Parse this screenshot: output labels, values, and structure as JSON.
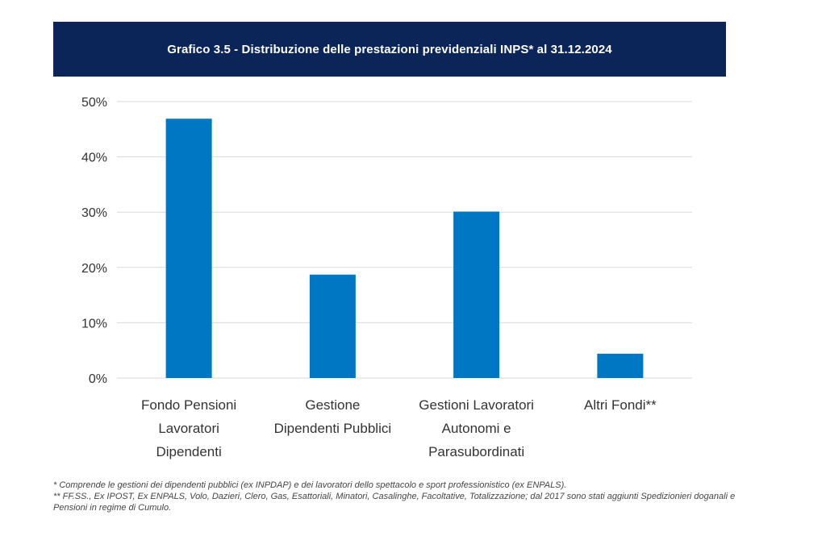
{
  "chart_data": {
    "type": "bar",
    "title": "Grafico 3.5 - Distribuzione delle prestazioni previdenziali INPS* al 31.12.2024",
    "categories": [
      [
        "Fondo Pensioni",
        "Lavoratori",
        "Dipendenti"
      ],
      [
        "Gestione",
        "Dipendenti Pubblici"
      ],
      [
        "Gestioni Lavoratori",
        "Autonomi e",
        "Parasubordinati"
      ],
      [
        "Altri Fondi**"
      ]
    ],
    "values": [
      46.9,
      18.7,
      30.1,
      4.4
    ],
    "ylim": [
      0,
      50
    ],
    "yticks": [
      0,
      10,
      20,
      30,
      40,
      50
    ],
    "ytick_labels": [
      "0%",
      "10%",
      "20%",
      "30%",
      "40%",
      "50%"
    ],
    "xlabel": "",
    "ylabel": "",
    "grid": true,
    "legend": "none",
    "bar_color": "#0077c2"
  },
  "colors": {
    "title_background": "#0b2559",
    "title_text": "#ffffff",
    "bars": "#0077c2",
    "gridlines": "#d9d9d9"
  },
  "notes": [
    "* Comprende le gestioni dei dipendenti pubblici (ex INPDAP) e dei lavoratori dello spettacolo e sport professionistico (ex ENPALS).",
    "** FF.SS., Ex IPOST, Ex ENPALS, Volo, Dazieri, Clero, Gas, Esattoriali, Minatori, Casalinghe, Facoltative, Totalizzazione; dal 2017 sono stati aggiunti Spedizionieri doganali e Pensioni in regime di Cumulo."
  ]
}
